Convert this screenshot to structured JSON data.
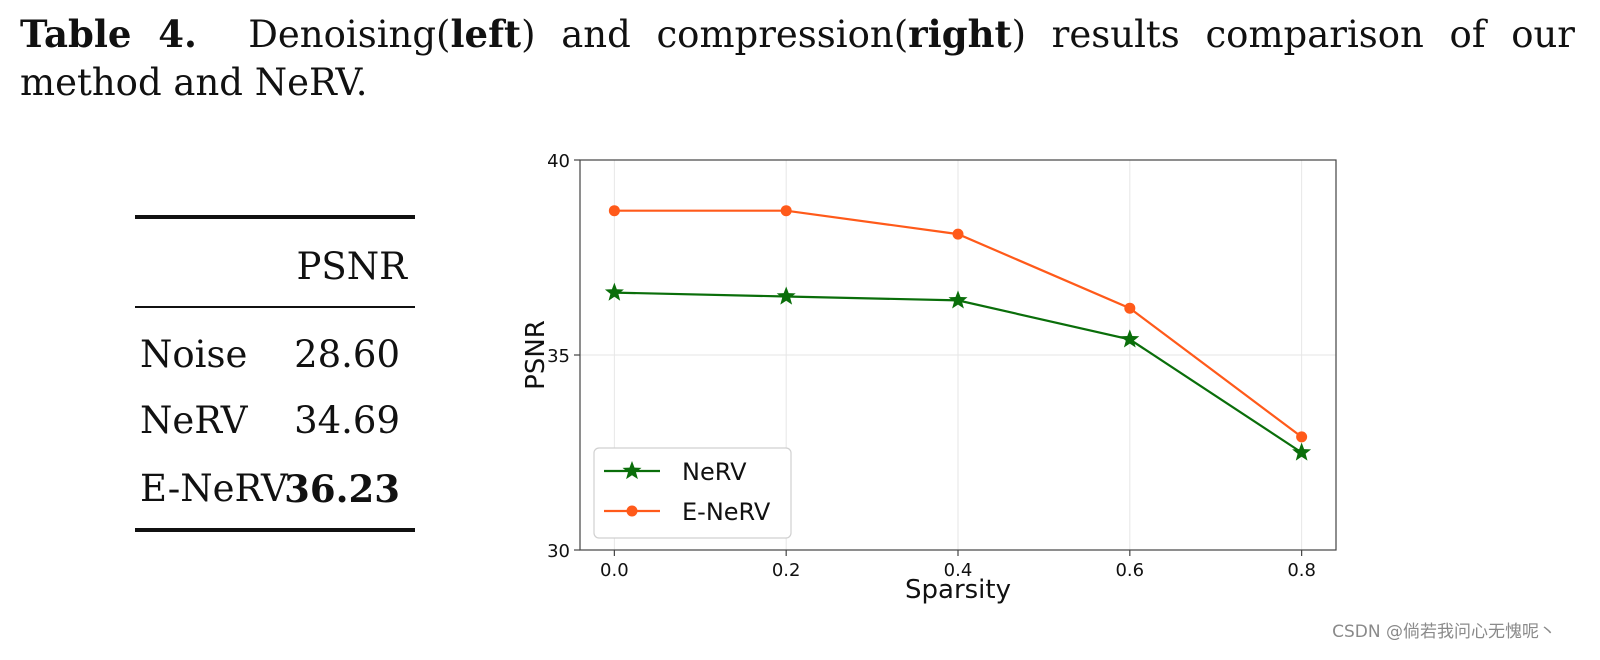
{
  "caption": {
    "label": "Table 4.",
    "part1": "Denoising(",
    "left_word": "left",
    "part2": ") and compression(",
    "right_word": "right",
    "part3": ") results comparison of our method and NeRV."
  },
  "table": {
    "header": "PSNR",
    "rows": [
      {
        "name": "Noise",
        "value": "28.60",
        "bold": false
      },
      {
        "name": "NeRV",
        "value": "34.69",
        "bold": false
      },
      {
        "name": "E-NeRV",
        "value": "36.23",
        "bold": true
      }
    ]
  },
  "chart_data": {
    "type": "line",
    "title": "",
    "xlabel": "Sparsity",
    "ylabel": "PSNR",
    "x": [
      0.0,
      0.2,
      0.4,
      0.6,
      0.8
    ],
    "xlim": [
      -0.04,
      0.84
    ],
    "ylim": [
      30,
      40
    ],
    "xticks": [
      "0.0",
      "0.2",
      "0.4",
      "0.6",
      "0.8"
    ],
    "yticks": [
      "30",
      "35",
      "40"
    ],
    "grid": true,
    "legend_position": "lower-left",
    "series": [
      {
        "name": "NeRV",
        "marker": "star",
        "color": "#0a6e0a",
        "values": [
          36.6,
          36.5,
          36.4,
          35.4,
          32.5
        ]
      },
      {
        "name": "E-NeRV",
        "marker": "circle",
        "color": "#ff5a1a",
        "values": [
          38.7,
          38.7,
          38.1,
          36.2,
          32.9
        ]
      }
    ]
  },
  "watermark": "CSDN @倘若我问心无愧呢丶"
}
